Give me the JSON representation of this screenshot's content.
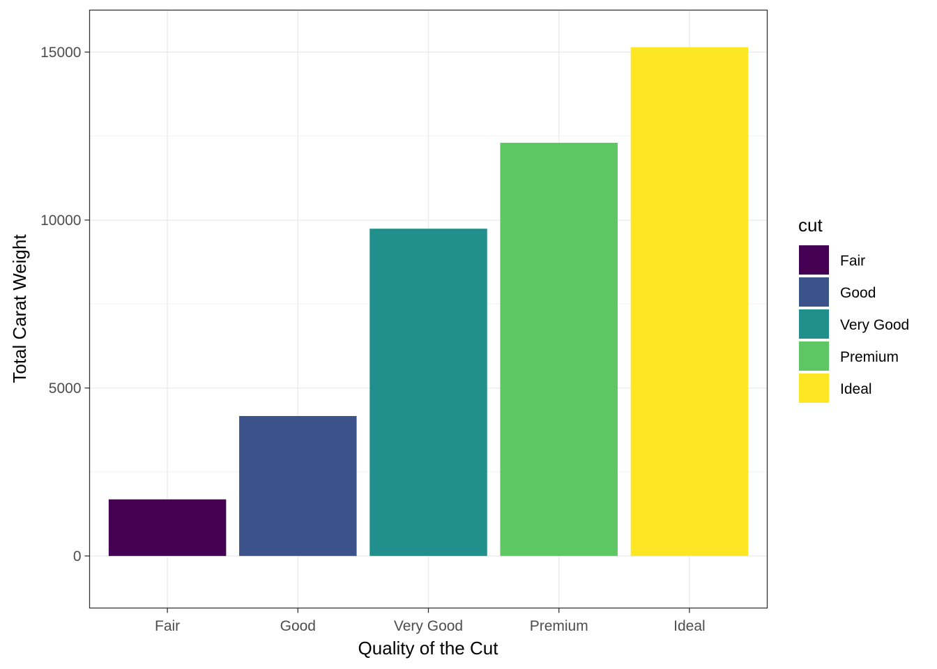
{
  "chart_data": {
    "type": "bar",
    "categories": [
      "Fair",
      "Good",
      "Very Good",
      "Premium",
      "Ideal"
    ],
    "values": [
      1684.28,
      4166.1,
      9742.7,
      12300.95,
      15146.84
    ],
    "colors": [
      "#440154",
      "#3B528B",
      "#21908C",
      "#5DC863",
      "#FDE725"
    ],
    "xlabel": "Quality of the Cut",
    "ylabel": "Total Carat Weight",
    "ylim": [
      -1550,
      16250
    ],
    "yticks": [
      0,
      5000,
      10000,
      15000
    ],
    "ytick_labels": [
      "0",
      "5000",
      "10000",
      "15000"
    ],
    "grid": true,
    "legend": {
      "title": "cut",
      "position": "right",
      "entries": [
        "Fair",
        "Good",
        "Very Good",
        "Premium",
        "Ideal"
      ]
    }
  }
}
